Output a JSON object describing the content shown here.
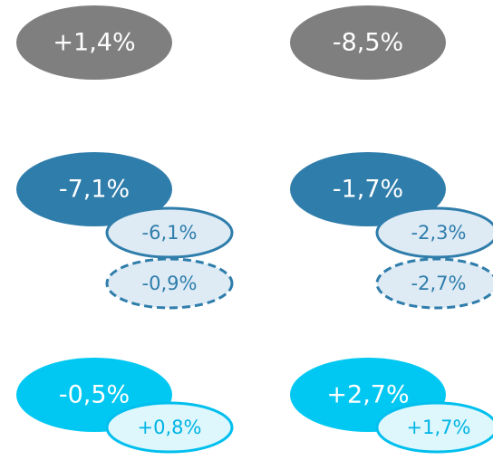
{
  "cells": [
    {
      "main": "+1,4%"
    },
    {
      "main": "-8,5%"
    },
    {
      "main": "-7,1%",
      "sub": "-6,1%",
      "sub2": "-0,9%"
    },
    {
      "main": "-1,7%",
      "sub": "-2,3%",
      "sub2": "-2,7%"
    },
    {
      "main": "-0,5%",
      "sub": "+0,8%"
    },
    {
      "main": "+2,7%",
      "sub": "+1,7%"
    }
  ]
}
